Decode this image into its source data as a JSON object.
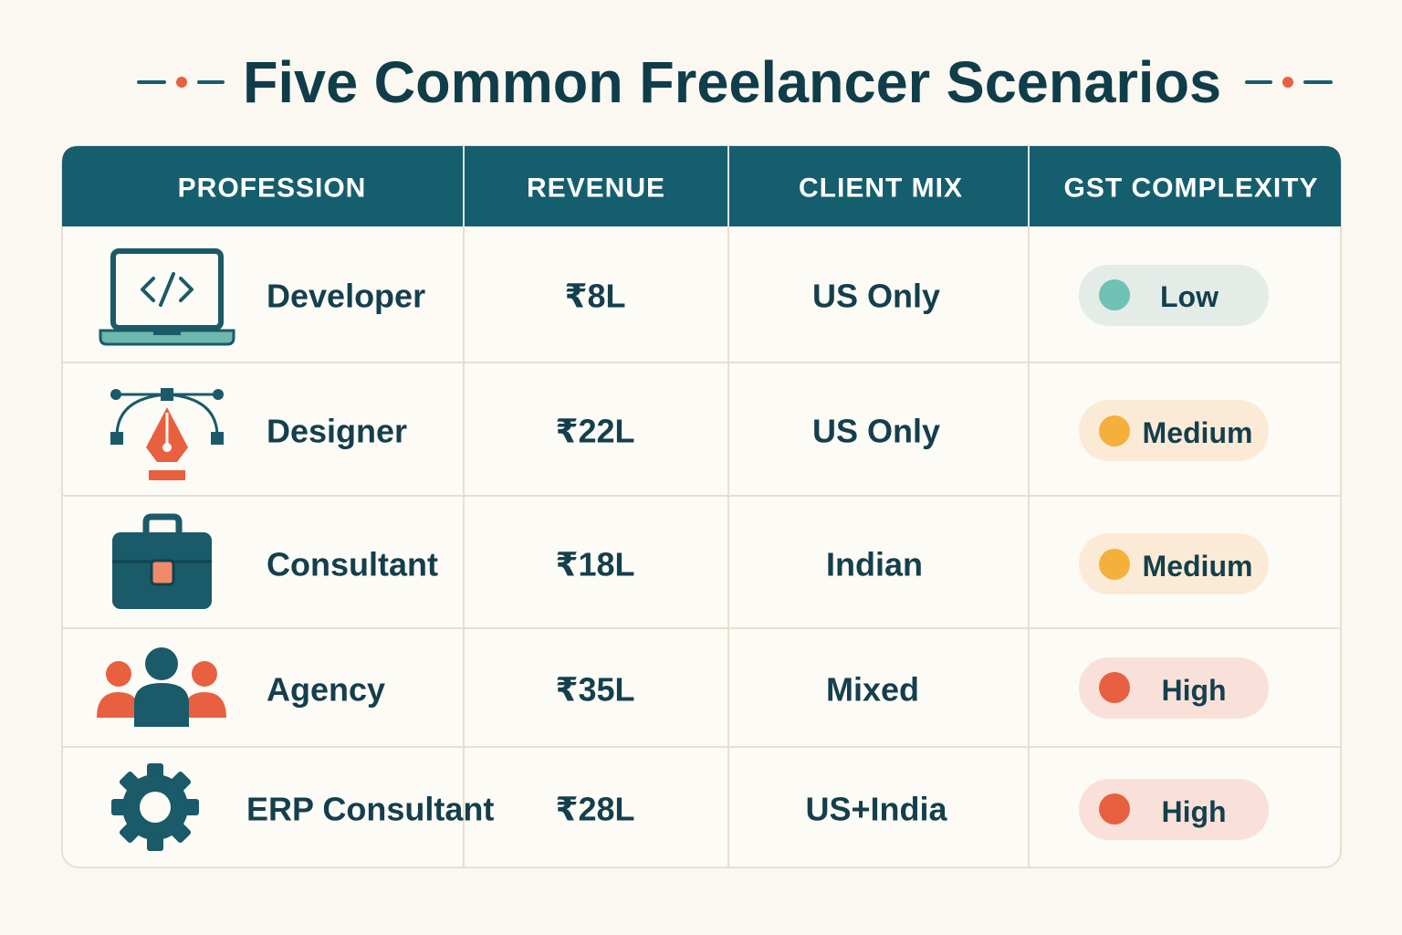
{
  "header": {
    "title": "Five Common Freelancer Scenarios"
  },
  "table": {
    "headers": [
      "PROFESSION",
      "REVENUE",
      "CLIENT MIX",
      "GST COMPLEXITY"
    ],
    "rows": [
      [
        "Developer",
        "₹8L",
        "US Only",
        "Low"
      ],
      [
        "Designer",
        "₹22L",
        "US Only",
        "Medium"
      ],
      [
        "Consultant",
        "₹18L",
        "Indian",
        "Medium"
      ],
      [
        "Agency",
        "₹35L",
        "Mixed",
        "High"
      ],
      [
        "ERP Consultant",
        "₹28L",
        "US+India",
        "High"
      ]
    ]
  }
}
